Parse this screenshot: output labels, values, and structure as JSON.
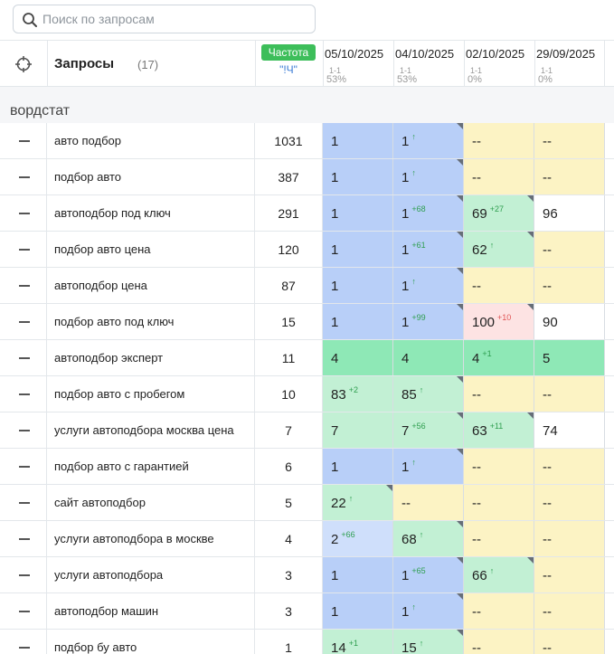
{
  "search": {
    "placeholder": "Поиск по запросам"
  },
  "header": {
    "icon": "target-icon",
    "title": "Запросы",
    "count": "(17)",
    "freq_label": "Частота",
    "freq_sub": "\"!Ч\"",
    "dates": [
      {
        "date": "05/10/2025",
        "sub1": "1-1",
        "sub2": "53%"
      },
      {
        "date": "04/10/2025",
        "sub1": "1-1",
        "sub2": "53%"
      },
      {
        "date": "02/10/2025",
        "sub1": "1-1",
        "sub2": "0%"
      },
      {
        "date": "29/09/2025",
        "sub1": "1-1",
        "sub2": "0%"
      }
    ]
  },
  "group": {
    "name": "вордстат"
  },
  "colors": {
    "blue": "#b8cff8",
    "light_blue": "#cfdffb",
    "green": "#c2f0d4",
    "dark_green": "#8ee8b6",
    "yellow": "#fcf3c4",
    "pink": "#fde3e3",
    "white": "#ffffff",
    "freq_badge": "#3dbe5a",
    "delta_up": "#2e9e4f",
    "delta_down": "#e05555"
  },
  "rows": [
    {
      "query": "авто подбор",
      "freq": "1031",
      "cells": [
        {
          "v": "1",
          "bg": "blue"
        },
        {
          "v": "1",
          "d": "↑",
          "dir": "up",
          "bg": "blue",
          "corner": true
        },
        {
          "v": "--",
          "bg": "yellow"
        },
        {
          "v": "--",
          "bg": "yellow"
        }
      ]
    },
    {
      "query": "подбор авто",
      "freq": "387",
      "cells": [
        {
          "v": "1",
          "bg": "blue"
        },
        {
          "v": "1",
          "d": "↑",
          "dir": "up",
          "bg": "blue",
          "corner": true
        },
        {
          "v": "--",
          "bg": "yellow"
        },
        {
          "v": "--",
          "bg": "yellow"
        }
      ]
    },
    {
      "query": "автоподбор под ключ",
      "freq": "291",
      "cells": [
        {
          "v": "1",
          "bg": "blue"
        },
        {
          "v": "1",
          "d": "+68",
          "dir": "up",
          "bg": "blue",
          "corner": true
        },
        {
          "v": "69",
          "d": "+27",
          "dir": "up",
          "bg": "green",
          "corner": true
        },
        {
          "v": "96",
          "bg": "white"
        }
      ]
    },
    {
      "query": "подбор авто цена",
      "freq": "120",
      "cells": [
        {
          "v": "1",
          "bg": "blue"
        },
        {
          "v": "1",
          "d": "+61",
          "dir": "up",
          "bg": "blue",
          "corner": true
        },
        {
          "v": "62",
          "d": "↑",
          "dir": "up",
          "bg": "green",
          "corner": true
        },
        {
          "v": "--",
          "bg": "yellow"
        }
      ]
    },
    {
      "query": "автоподбор цена",
      "freq": "87",
      "cells": [
        {
          "v": "1",
          "bg": "blue"
        },
        {
          "v": "1",
          "d": "↑",
          "dir": "up",
          "bg": "blue",
          "corner": true
        },
        {
          "v": "--",
          "bg": "yellow"
        },
        {
          "v": "--",
          "bg": "yellow"
        }
      ]
    },
    {
      "query": "подбор авто под ключ",
      "freq": "15",
      "cells": [
        {
          "v": "1",
          "bg": "blue"
        },
        {
          "v": "1",
          "d": "+99",
          "dir": "up",
          "bg": "blue",
          "corner": true
        },
        {
          "v": "100",
          "d": "+10",
          "dir": "down",
          "bg": "pink",
          "corner": true
        },
        {
          "v": "90",
          "bg": "white"
        }
      ]
    },
    {
      "query": "автоподбор эксперт",
      "freq": "11",
      "cells": [
        {
          "v": "4",
          "bg": "dgreen"
        },
        {
          "v": "4",
          "bg": "dgreen"
        },
        {
          "v": "4",
          "d": "+1",
          "dir": "up",
          "bg": "dgreen"
        },
        {
          "v": "5",
          "bg": "dgreen"
        }
      ]
    },
    {
      "query": "подбор авто с пробегом",
      "freq": "10",
      "cells": [
        {
          "v": "83",
          "d": "+2",
          "dir": "up",
          "bg": "green"
        },
        {
          "v": "85",
          "d": "↑",
          "dir": "up",
          "bg": "green",
          "corner": true
        },
        {
          "v": "--",
          "bg": "yellow"
        },
        {
          "v": "--",
          "bg": "yellow"
        }
      ]
    },
    {
      "query": "услуги автоподбора москва цена",
      "freq": "7",
      "cells": [
        {
          "v": "7",
          "bg": "green"
        },
        {
          "v": "7",
          "d": "+56",
          "dir": "up",
          "bg": "green",
          "corner": true
        },
        {
          "v": "63",
          "d": "+11",
          "dir": "up",
          "bg": "green",
          "corner": true
        },
        {
          "v": "74",
          "bg": "white"
        }
      ]
    },
    {
      "query": "подбор авто с гарантией",
      "freq": "6",
      "cells": [
        {
          "v": "1",
          "bg": "blue"
        },
        {
          "v": "1",
          "d": "↑",
          "dir": "up",
          "bg": "blue",
          "corner": true
        },
        {
          "v": "--",
          "bg": "yellow"
        },
        {
          "v": "--",
          "bg": "yellow"
        }
      ]
    },
    {
      "query": "сайт автоподбор",
      "freq": "5",
      "cells": [
        {
          "v": "22",
          "d": "↑",
          "dir": "up",
          "bg": "green",
          "corner": true
        },
        {
          "v": "--",
          "bg": "yellow"
        },
        {
          "v": "--",
          "bg": "yellow"
        },
        {
          "v": "--",
          "bg": "yellow"
        }
      ]
    },
    {
      "query": "услуги автоподбора в москве",
      "freq": "4",
      "cells": [
        {
          "v": "2",
          "d": "+66",
          "dir": "up",
          "bg": "lblue"
        },
        {
          "v": "68",
          "d": "↑",
          "dir": "up",
          "bg": "green",
          "corner": true
        },
        {
          "v": "--",
          "bg": "yellow"
        },
        {
          "v": "--",
          "bg": "yellow"
        }
      ]
    },
    {
      "query": "услуги автоподбора",
      "freq": "3",
      "cells": [
        {
          "v": "1",
          "bg": "blue"
        },
        {
          "v": "1",
          "d": "+65",
          "dir": "up",
          "bg": "blue",
          "corner": true
        },
        {
          "v": "66",
          "d": "↑",
          "dir": "up",
          "bg": "green",
          "corner": true
        },
        {
          "v": "--",
          "bg": "yellow"
        }
      ]
    },
    {
      "query": "автоподбор машин",
      "freq": "3",
      "cells": [
        {
          "v": "1",
          "bg": "blue"
        },
        {
          "v": "1",
          "d": "↑",
          "dir": "up",
          "bg": "blue",
          "corner": true
        },
        {
          "v": "--",
          "bg": "yellow"
        },
        {
          "v": "--",
          "bg": "yellow"
        }
      ]
    },
    {
      "query": "подбор бу авто",
      "freq": "1",
      "cells": [
        {
          "v": "14",
          "d": "+1",
          "dir": "up",
          "bg": "green"
        },
        {
          "v": "15",
          "d": "↑",
          "dir": "up",
          "bg": "green",
          "corner": true
        },
        {
          "v": "--",
          "bg": "yellow"
        },
        {
          "v": "--",
          "bg": "yellow"
        }
      ]
    }
  ]
}
